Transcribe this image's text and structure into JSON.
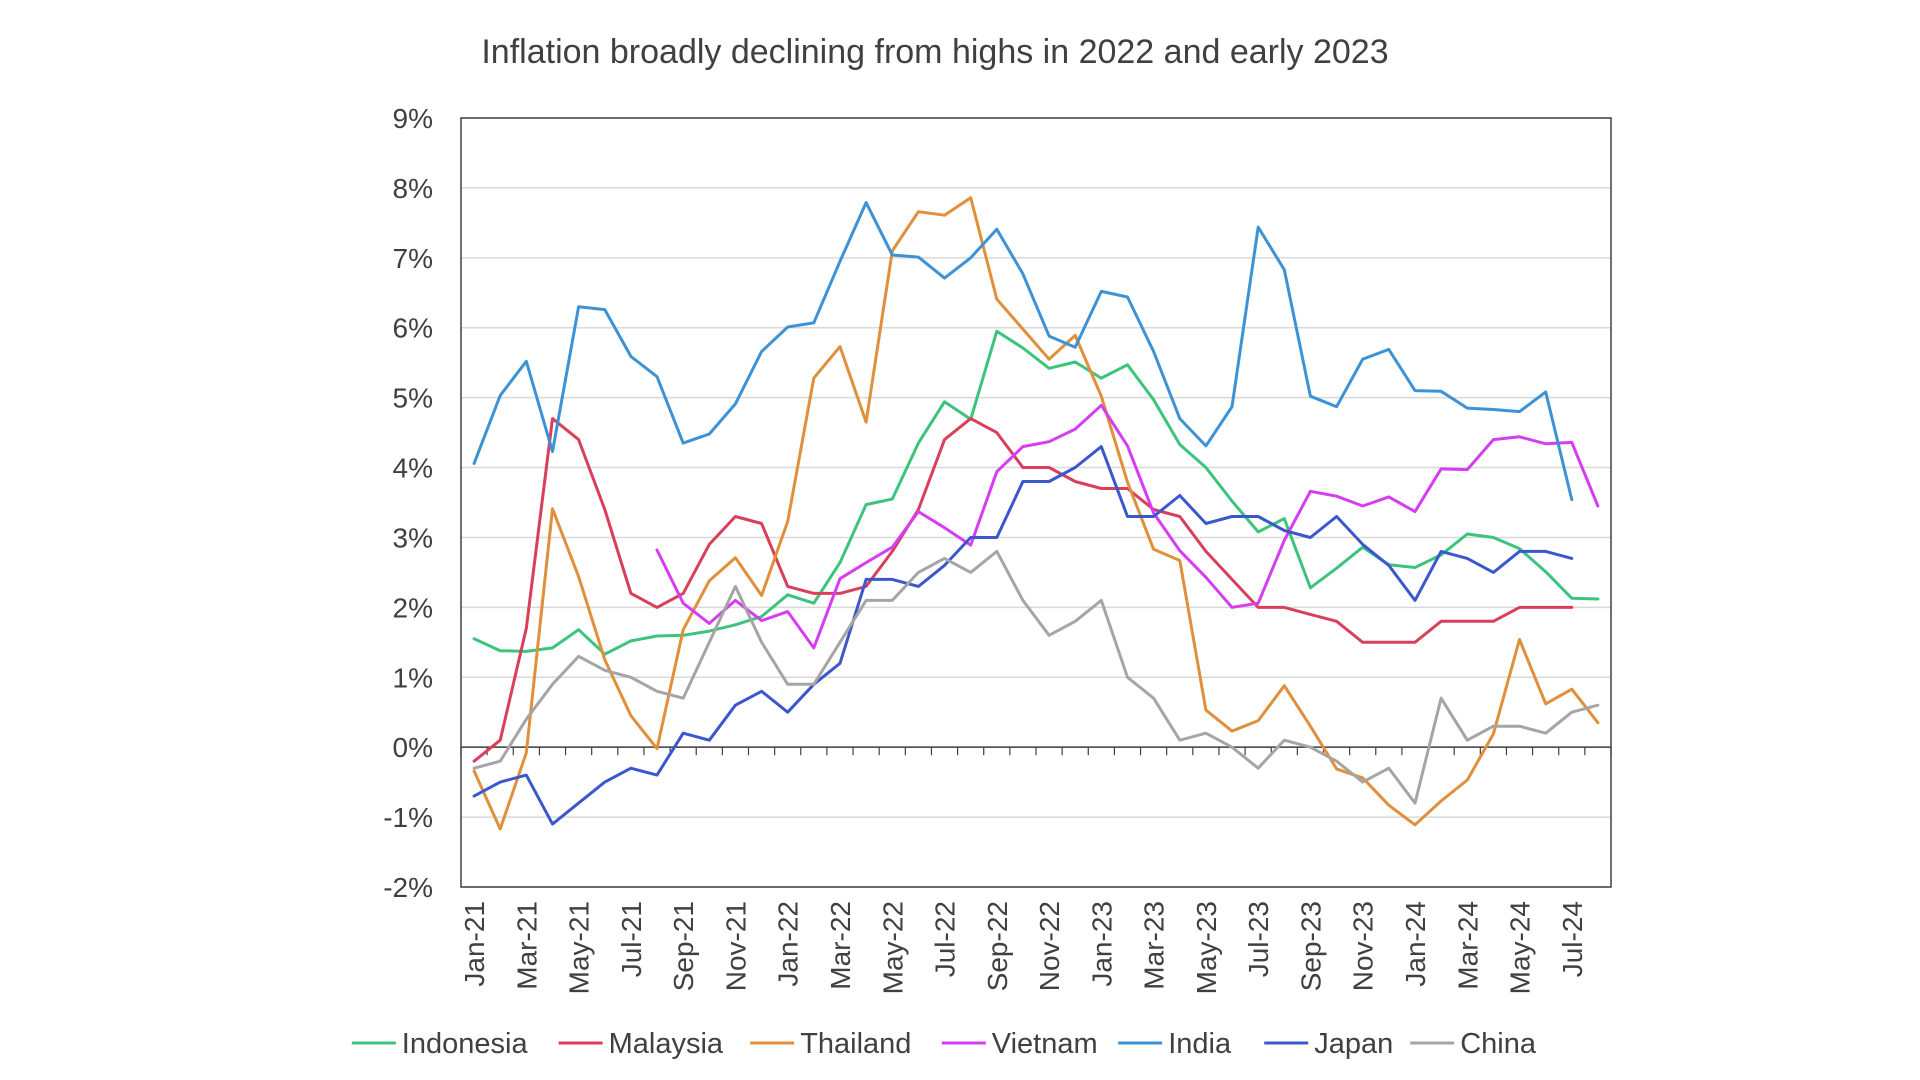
{
  "chart_data": {
    "type": "line",
    "title": "Inflation broadly declining from highs in 2022 and early 2023",
    "xlabel": "",
    "ylabel": "",
    "ylim": [
      -2,
      9
    ],
    "yticks": [
      "-2%",
      "-1%",
      "0%",
      "1%",
      "2%",
      "3%",
      "4%",
      "5%",
      "6%",
      "7%",
      "8%",
      "9%"
    ],
    "x": [
      "Jan-21",
      "Feb-21",
      "Mar-21",
      "Apr-21",
      "May-21",
      "Jun-21",
      "Jul-21",
      "Aug-21",
      "Sep-21",
      "Oct-21",
      "Nov-21",
      "Dec-21",
      "Jan-22",
      "Feb-22",
      "Mar-22",
      "Apr-22",
      "May-22",
      "Jun-22",
      "Jul-22",
      "Aug-22",
      "Sep-22",
      "Oct-22",
      "Nov-22",
      "Dec-22",
      "Jan-23",
      "Feb-23",
      "Mar-23",
      "Apr-23",
      "May-23",
      "Jun-23",
      "Jul-23",
      "Aug-23",
      "Sep-23",
      "Oct-23",
      "Nov-23",
      "Dec-23",
      "Jan-24",
      "Feb-24",
      "Mar-24",
      "Apr-24",
      "May-24",
      "Jun-24",
      "Jul-24",
      "Aug-24"
    ],
    "xtick_labels": [
      "Jan-21",
      "Mar-21",
      "May-21",
      "Jul-21",
      "Sep-21",
      "Nov-21",
      "Jan-22",
      "Mar-22",
      "May-22",
      "Jul-22",
      "Sep-22",
      "Nov-22",
      "Jan-23",
      "Mar-23",
      "May-23",
      "Jul-23",
      "Sep-23",
      "Nov-23",
      "Jan-24",
      "Mar-24",
      "May-24",
      "Jul-24"
    ],
    "grid": true,
    "legend_position": "bottom",
    "series": [
      {
        "name": "Indonesia",
        "color": "#3cc47c",
        "values": [
          1.55,
          1.38,
          1.37,
          1.42,
          1.68,
          1.33,
          1.52,
          1.59,
          1.6,
          1.66,
          1.75,
          1.87,
          2.18,
          2.06,
          2.64,
          3.47,
          3.55,
          4.35,
          4.94,
          4.69,
          5.95,
          5.71,
          5.42,
          5.51,
          5.28,
          5.47,
          4.97,
          4.33,
          4.0,
          3.52,
          3.08,
          3.27,
          2.28,
          2.56,
          2.86,
          2.61,
          2.57,
          2.75,
          3.05,
          3.0,
          2.84,
          2.51,
          2.13,
          2.12
        ]
      },
      {
        "name": "Malaysia",
        "color": "#d93f5b",
        "values": [
          -0.2,
          0.1,
          1.7,
          4.7,
          4.4,
          3.4,
          2.2,
          2.0,
          2.2,
          2.9,
          3.3,
          3.2,
          2.3,
          2.2,
          2.2,
          2.3,
          2.8,
          3.4,
          4.4,
          4.7,
          4.5,
          4.0,
          4.0,
          3.8,
          3.7,
          3.7,
          3.4,
          3.3,
          2.8,
          2.4,
          2.0,
          2.0,
          1.9,
          1.8,
          1.5,
          1.5,
          1.5,
          1.8,
          1.8,
          1.8,
          2.0,
          2.0,
          2.0,
          null
        ]
      },
      {
        "name": "Thailand",
        "color": "#e08f3a",
        "values": [
          -0.34,
          -1.17,
          -0.08,
          3.41,
          2.44,
          1.25,
          0.45,
          -0.02,
          1.68,
          2.38,
          2.71,
          2.17,
          3.23,
          5.28,
          5.73,
          4.65,
          7.1,
          7.66,
          7.61,
          7.86,
          6.41,
          5.98,
          5.55,
          5.89,
          5.02,
          3.79,
          2.83,
          2.67,
          0.53,
          0.23,
          0.38,
          0.88,
          0.3,
          -0.31,
          -0.44,
          -0.83,
          -1.11,
          -0.77,
          -0.47,
          0.19,
          1.54,
          0.62,
          0.83,
          0.35
        ]
      },
      {
        "name": "Vietnam",
        "color": "#d63df2",
        "values": [
          null,
          null,
          null,
          null,
          null,
          null,
          null,
          2.82,
          2.06,
          1.77,
          2.1,
          1.81,
          1.94,
          1.42,
          2.41,
          2.64,
          2.86,
          3.37,
          3.14,
          2.89,
          3.94,
          4.3,
          4.37,
          4.55,
          4.89,
          4.31,
          3.35,
          2.81,
          2.43,
          2.0,
          2.06,
          2.96,
          3.66,
          3.59,
          3.45,
          3.58,
          3.37,
          3.98,
          3.97,
          4.4,
          4.44,
          4.34,
          4.36,
          3.45
        ]
      },
      {
        "name": "India",
        "color": "#3d92d6",
        "values": [
          4.06,
          5.03,
          5.52,
          4.23,
          6.3,
          6.26,
          5.59,
          5.3,
          4.35,
          4.48,
          4.91,
          5.66,
          6.01,
          6.07,
          6.95,
          7.79,
          7.04,
          7.01,
          6.71,
          7.0,
          7.41,
          6.77,
          5.88,
          5.72,
          6.52,
          6.44,
          5.66,
          4.7,
          4.31,
          4.87,
          7.44,
          6.83,
          5.02,
          4.87,
          5.55,
          5.69,
          5.1,
          5.09,
          4.85,
          4.83,
          4.8,
          5.08,
          3.54,
          null
        ]
      },
      {
        "name": "Japan",
        "color": "#3b57cc",
        "values": [
          -0.7,
          -0.5,
          -0.4,
          -1.1,
          -0.8,
          -0.5,
          -0.3,
          -0.4,
          0.2,
          0.1,
          0.6,
          0.8,
          0.5,
          0.9,
          1.2,
          2.4,
          2.4,
          2.3,
          2.6,
          3.0,
          3.0,
          3.8,
          3.8,
          4.0,
          4.3,
          3.3,
          3.3,
          3.6,
          3.2,
          3.3,
          3.3,
          3.1,
          3.0,
          3.3,
          2.9,
          2.6,
          2.1,
          2.8,
          2.7,
          2.5,
          2.8,
          2.8,
          2.7,
          null
        ]
      },
      {
        "name": "China",
        "color": "#a5a5a5",
        "values": [
          -0.3,
          -0.2,
          0.4,
          0.9,
          1.3,
          1.1,
          1.0,
          0.8,
          0.7,
          1.5,
          2.3,
          1.5,
          0.9,
          0.9,
          1.5,
          2.1,
          2.1,
          2.5,
          2.7,
          2.5,
          2.8,
          2.1,
          1.6,
          1.8,
          2.1,
          1.0,
          0.7,
          0.1,
          0.2,
          0.0,
          -0.3,
          0.1,
          0.0,
          -0.2,
          -0.5,
          -0.3,
          -0.8,
          0.7,
          0.1,
          0.3,
          0.3,
          0.2,
          0.5,
          0.6
        ]
      }
    ]
  }
}
